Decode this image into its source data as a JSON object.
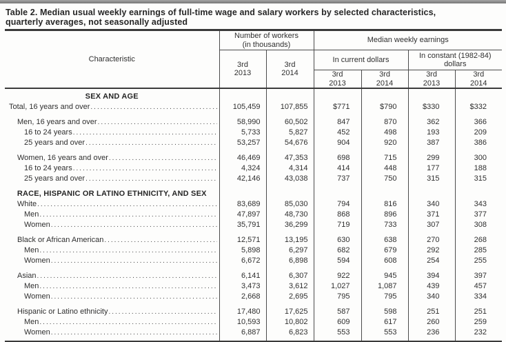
{
  "title": {
    "line1": "Table 2. Median usual weekly earnings of full-time wage and salary workers by selected characteristics,",
    "line2": "quarterly averages, not seasonally adjusted"
  },
  "header": {
    "characteristic": "Characteristic",
    "workers_group": {
      "line1": "Number of workers",
      "line2": "(in thousands)"
    },
    "earnings_group": "Median weekly earnings",
    "current_group": "In current dollars",
    "constant_group": {
      "line1": "In constant (1982-84)",
      "line2": "dollars"
    },
    "periods": {
      "q2013": {
        "line1": "3rd",
        "line2": "2013"
      },
      "q2014": {
        "line1": "3rd",
        "line2": "2014"
      }
    }
  },
  "rows": [
    {
      "type": "section",
      "label": "SEX AND AGE",
      "gap": false
    },
    {
      "type": "data",
      "indent": 0,
      "gap": false,
      "label": "Total, 16 years and over",
      "values": [
        "105,459",
        "107,855",
        "$771",
        "$790",
        "$330",
        "$332"
      ]
    },
    {
      "type": "data",
      "indent": 1,
      "gap": true,
      "label": "Men, 16 years and over",
      "values": [
        "58,990",
        "60,502",
        "847",
        "870",
        "362",
        "366"
      ]
    },
    {
      "type": "data",
      "indent": 2,
      "gap": false,
      "label": "16 to 24 years",
      "values": [
        "5,733",
        "5,827",
        "452",
        "498",
        "193",
        "209"
      ]
    },
    {
      "type": "data",
      "indent": 2,
      "gap": false,
      "label": "25 years and over",
      "values": [
        "53,257",
        "54,676",
        "904",
        "920",
        "387",
        "386"
      ]
    },
    {
      "type": "data",
      "indent": 1,
      "gap": true,
      "label": "Women, 16 years and over",
      "values": [
        "46,469",
        "47,353",
        "698",
        "715",
        "299",
        "300"
      ]
    },
    {
      "type": "data",
      "indent": 2,
      "gap": false,
      "label": "16 to 24 years",
      "values": [
        "4,324",
        "4,314",
        "414",
        "448",
        "177",
        "188"
      ]
    },
    {
      "type": "data",
      "indent": 2,
      "gap": false,
      "label": "25 years and over",
      "values": [
        "42,146",
        "43,038",
        "737",
        "750",
        "315",
        "315"
      ]
    },
    {
      "type": "section",
      "label": "RACE, HISPANIC OR LATINO ETHNICITY, AND SEX",
      "gap": true
    },
    {
      "type": "data",
      "indent": 1,
      "gap": false,
      "label": "White",
      "values": [
        "83,689",
        "85,030",
        "794",
        "816",
        "340",
        "343"
      ]
    },
    {
      "type": "data",
      "indent": 2,
      "gap": false,
      "label": "Men",
      "values": [
        "47,897",
        "48,730",
        "868",
        "896",
        "371",
        "377"
      ]
    },
    {
      "type": "data",
      "indent": 2,
      "gap": false,
      "label": "Women",
      "values": [
        "35,791",
        "36,299",
        "719",
        "733",
        "307",
        "308"
      ]
    },
    {
      "type": "data",
      "indent": 1,
      "gap": true,
      "label": "Black or African American",
      "values": [
        "12,571",
        "13,195",
        "630",
        "638",
        "270",
        "268"
      ]
    },
    {
      "type": "data",
      "indent": 2,
      "gap": false,
      "label": "Men",
      "values": [
        "5,898",
        "6,297",
        "682",
        "679",
        "292",
        "285"
      ]
    },
    {
      "type": "data",
      "indent": 2,
      "gap": false,
      "label": "Women",
      "values": [
        "6,672",
        "6,898",
        "594",
        "608",
        "254",
        "255"
      ]
    },
    {
      "type": "data",
      "indent": 1,
      "gap": true,
      "label": "Asian",
      "values": [
        "6,141",
        "6,307",
        "922",
        "945",
        "394",
        "397"
      ]
    },
    {
      "type": "data",
      "indent": 2,
      "gap": false,
      "label": "Men",
      "values": [
        "3,473",
        "3,612",
        "1,027",
        "1,087",
        "439",
        "457"
      ]
    },
    {
      "type": "data",
      "indent": 2,
      "gap": false,
      "label": "Women",
      "values": [
        "2,668",
        "2,695",
        "795",
        "795",
        "340",
        "334"
      ]
    },
    {
      "type": "data",
      "indent": 1,
      "gap": true,
      "label": "Hispanic or Latino ethnicity",
      "values": [
        "17,480",
        "17,625",
        "587",
        "598",
        "251",
        "251"
      ]
    },
    {
      "type": "data",
      "indent": 2,
      "gap": false,
      "label": "Men",
      "values": [
        "10,593",
        "10,802",
        "609",
        "617",
        "260",
        "259"
      ]
    },
    {
      "type": "data",
      "indent": 2,
      "gap": false,
      "label": "Women",
      "values": [
        "6,887",
        "6,823",
        "553",
        "553",
        "236",
        "232"
      ]
    }
  ],
  "colors": {
    "rule": "#3a3a3a",
    "text": "#2f2f2f",
    "top_bar": "#8e8e8e",
    "background": "#fdfdfc"
  }
}
